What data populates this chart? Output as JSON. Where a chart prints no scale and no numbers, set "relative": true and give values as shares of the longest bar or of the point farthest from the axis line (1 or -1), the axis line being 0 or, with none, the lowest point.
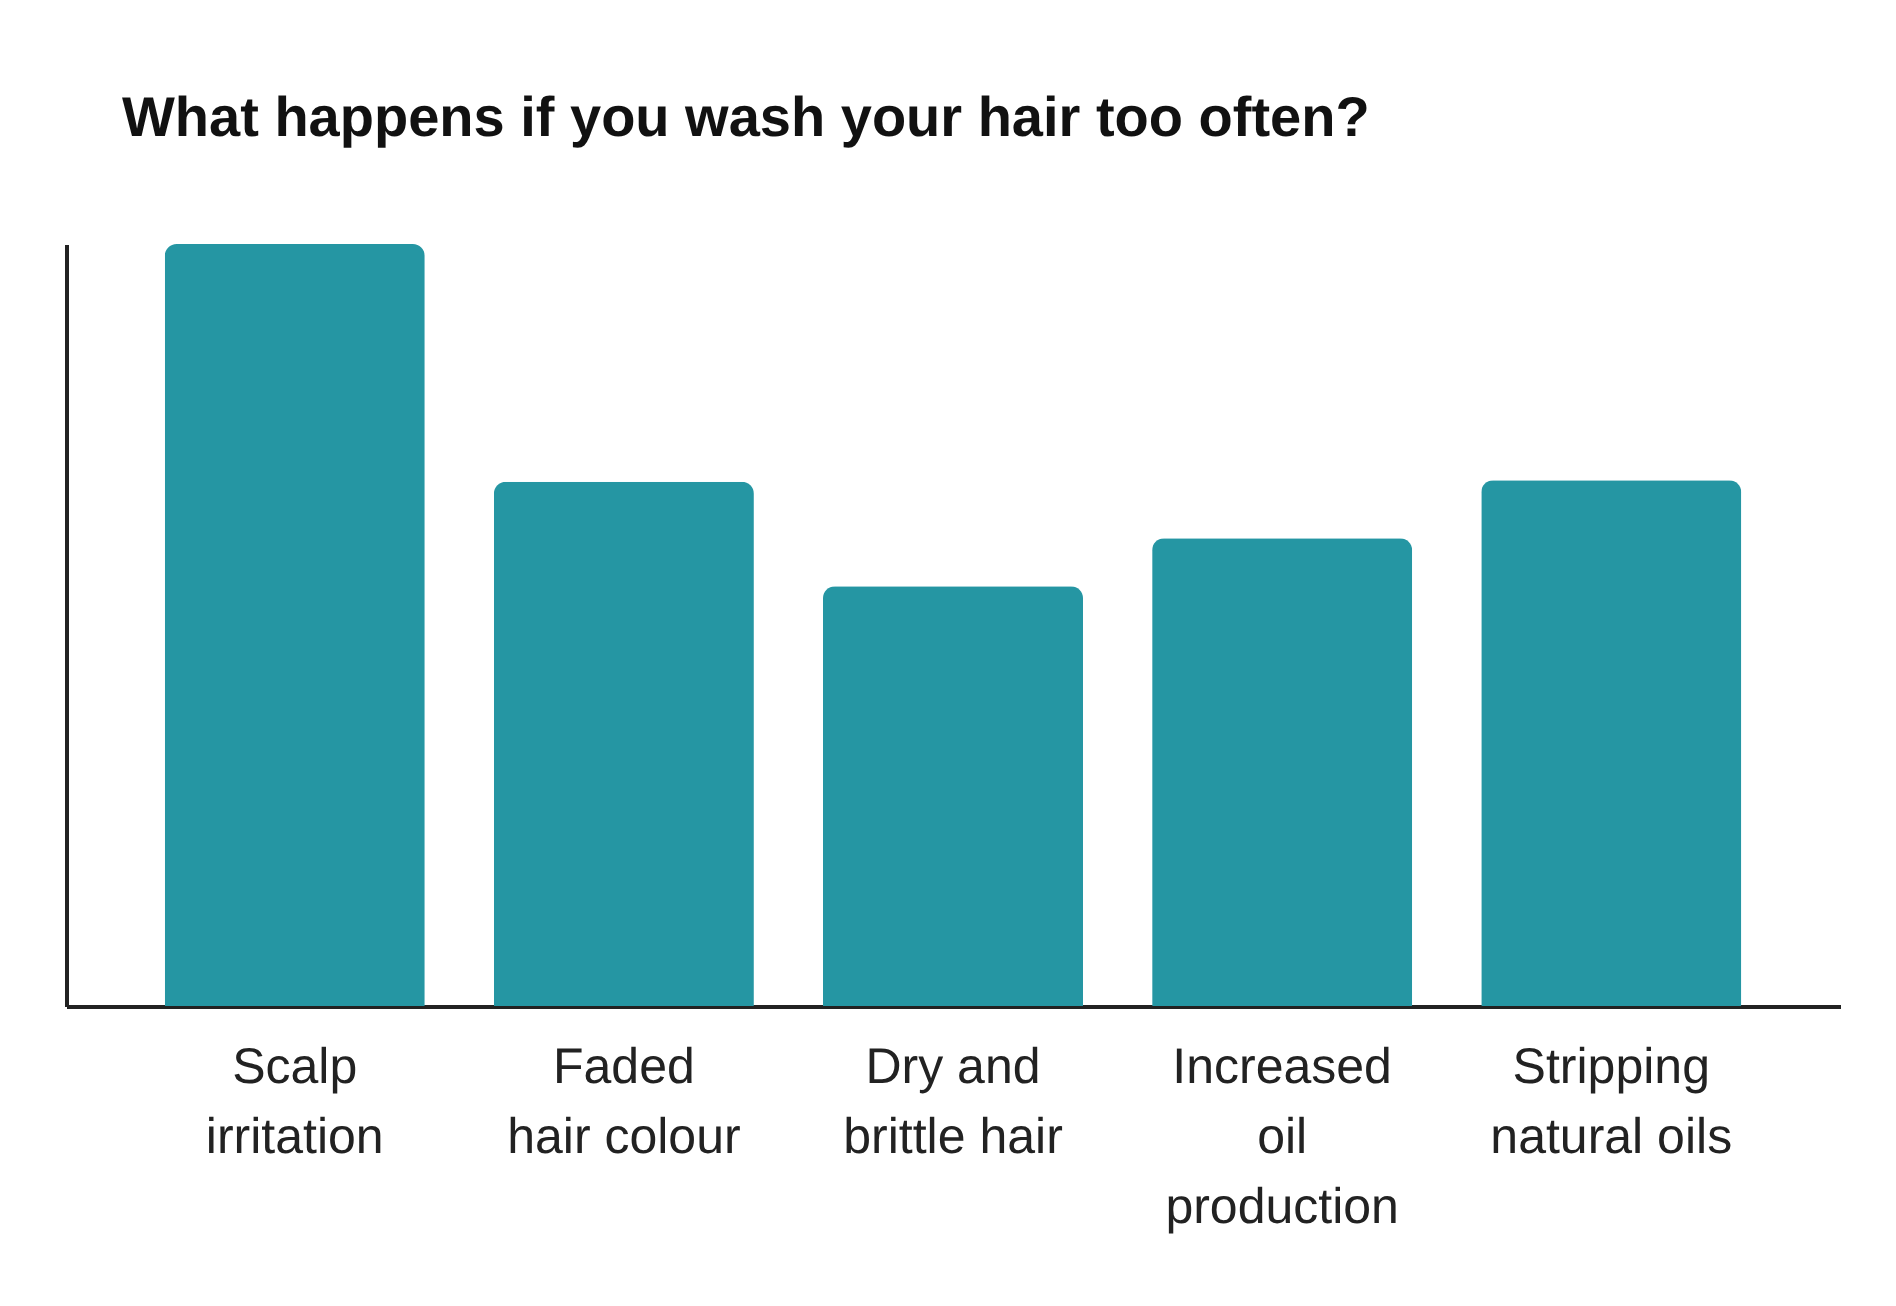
{
  "chart_data": {
    "type": "bar",
    "title": "What happens if you wash your hair too often?",
    "categories": [
      "Scalp\nirritation",
      "Faded\nhair colour",
      "Dry and\nbrittle hair",
      "Increased\noil\nproduction",
      "Stripping\nnatural oils"
    ],
    "values": [
      1,
      0.688,
      0.551,
      0.614,
      0.69
    ],
    "color": "#2596a3",
    "relative": true
  }
}
